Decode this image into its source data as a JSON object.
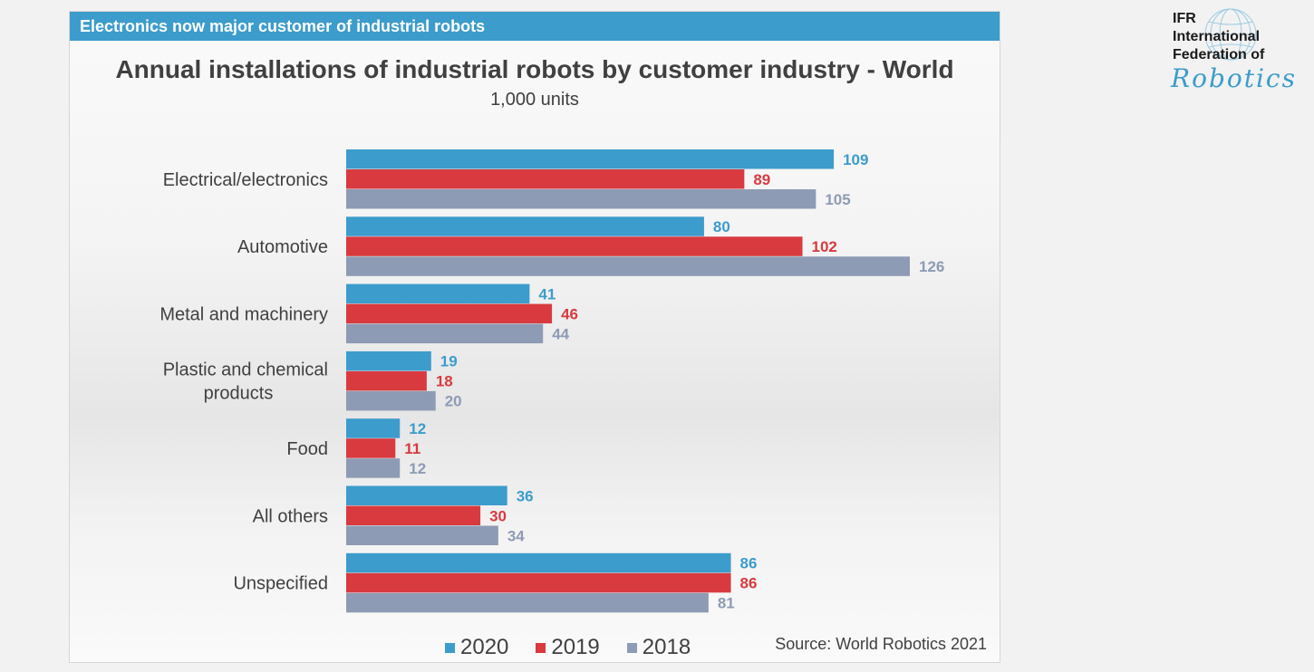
{
  "banner": {
    "title": "Electronics now major customer of industrial robots"
  },
  "logo": {
    "line1": "IFR",
    "line2": "International",
    "line3": "Federation of",
    "line4": "Robotics"
  },
  "source": "Source: World Robotics 2021",
  "colors": {
    "2020": "#3c9ccc",
    "2019": "#d83a3f",
    "2018": "#8d9bb4",
    "banner": "#3c9ccc"
  },
  "chart_data": {
    "type": "bar",
    "orientation": "horizontal",
    "title": "Annual installations of industrial robots by customer industry - World",
    "subtitle": "1,000 units",
    "categories": [
      "Electrical/electronics",
      "Automotive",
      "Metal and machinery",
      "Plastic and chemical products",
      "Food",
      "All others",
      "Unspecified"
    ],
    "category_lines": [
      [
        "Electrical/electronics"
      ],
      [
        "Automotive"
      ],
      [
        "Metal and machinery"
      ],
      [
        "Plastic and chemical",
        "products"
      ],
      [
        "Food"
      ],
      [
        "All others"
      ],
      [
        "Unspecified"
      ]
    ],
    "series": [
      {
        "name": "2020",
        "color": "#3c9ccc",
        "values": [
          109,
          80,
          41,
          19,
          12,
          36,
          86
        ]
      },
      {
        "name": "2019",
        "color": "#d83a3f",
        "values": [
          89,
          102,
          46,
          18,
          11,
          30,
          86
        ]
      },
      {
        "name": "2018",
        "color": "#8d9bb4",
        "values": [
          105,
          126,
          44,
          20,
          12,
          34,
          81
        ]
      }
    ],
    "xlim": [
      0,
      126
    ],
    "legend": "bottom",
    "grid": false,
    "data_labels": true
  }
}
